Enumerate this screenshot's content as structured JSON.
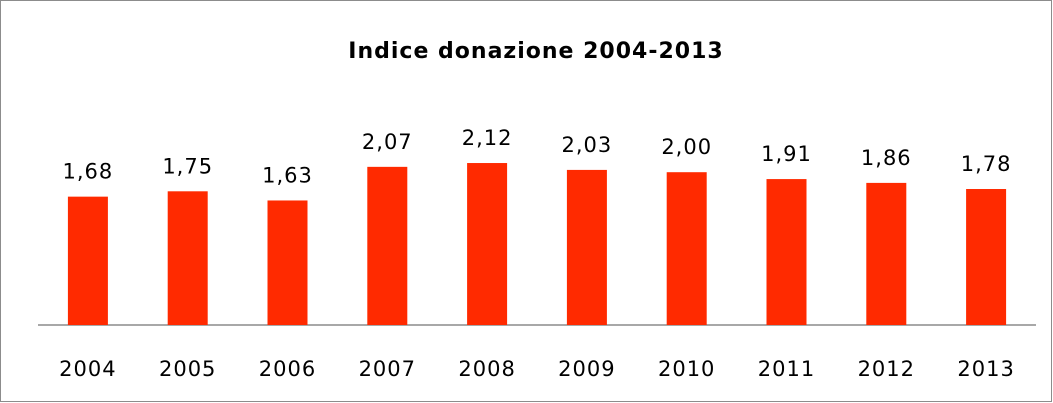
{
  "chart_data": {
    "type": "bar",
    "title": "Indice donazione 2004-2013",
    "categories": [
      "2004",
      "2005",
      "2006",
      "2007",
      "2008",
      "2009",
      "2010",
      "2011",
      "2012",
      "2013"
    ],
    "values": [
      1.68,
      1.75,
      1.63,
      2.07,
      2.12,
      2.03,
      2.0,
      1.91,
      1.86,
      1.78
    ],
    "value_labels": [
      "1,68",
      "1,75",
      "1,63",
      "2,07",
      "2,12",
      "2,03",
      "2,00",
      "1,91",
      "1,86",
      "1,78"
    ],
    "color": "#ff2a00",
    "ylim": [
      0,
      2.5
    ]
  }
}
